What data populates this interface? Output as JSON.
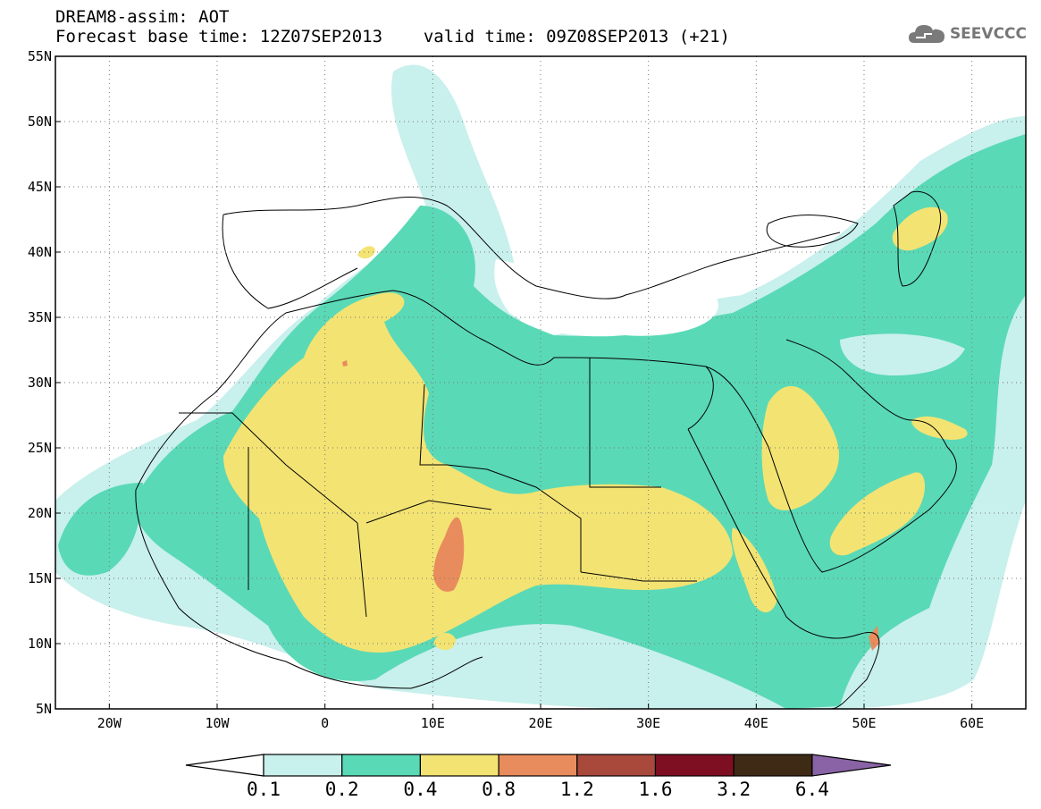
{
  "header": {
    "title_line1": "DREAM8-assim: AOT",
    "title_line2": "Forecast base time: 12Z07SEP2013",
    "valid_time": "valid time: 09Z08SEP2013 (+21)",
    "logo_text": "SEEVCCC",
    "logo_icon": "cloud-icon"
  },
  "axes": {
    "lat_labels": [
      "55N",
      "50N",
      "45N",
      "40N",
      "35N",
      "30N",
      "25N",
      "20N",
      "15N",
      "10N",
      "5N"
    ],
    "lat_values": [
      55,
      50,
      45,
      40,
      35,
      30,
      25,
      20,
      15,
      10,
      5
    ],
    "lon_labels": [
      "20W",
      "10W",
      "0",
      "10E",
      "20E",
      "30E",
      "40E",
      "50E",
      "60E"
    ],
    "lon_values": [
      -20,
      -10,
      0,
      10,
      20,
      30,
      40,
      50,
      60
    ],
    "lon_range": [
      -25,
      65
    ],
    "lat_range": [
      5,
      55
    ],
    "grid": "dotted"
  },
  "colorbar": {
    "labels": [
      "0.1",
      "0.2",
      "0.4",
      "0.8",
      "1.2",
      "1.6",
      "3.2",
      "6.4"
    ],
    "colors": [
      "#c8f0ec",
      "#5ad9b6",
      "#f3e373",
      "#e98c5d",
      "#a8493b",
      "#7e0f23",
      "#3f2a16",
      "#8a63a6"
    ]
  }
}
